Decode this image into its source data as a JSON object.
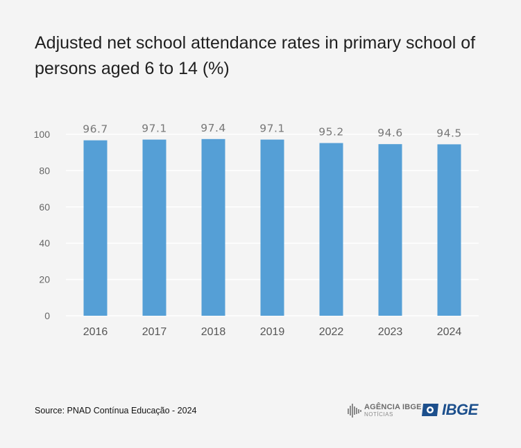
{
  "title": "Adjusted net school attendance rates in primary school of persons aged 6 to 14 (%)",
  "source": "Source: PNAD Contínua Educação - 2024",
  "logos": {
    "agencia_main": "AGÊNCIA IBGE",
    "agencia_sub": "NOTÍCIAS",
    "ibge": "IBGE"
  },
  "colors": {
    "bar": "#559fd6",
    "ibge_blue": "#1c4f8c"
  },
  "chart_data": {
    "type": "bar",
    "title": "Adjusted net school attendance rates in primary school of persons aged 6 to 14 (%)",
    "categories": [
      "2016",
      "2017",
      "2018",
      "2019",
      "2022",
      "2023",
      "2024"
    ],
    "values": [
      96.7,
      97.1,
      97.4,
      97.1,
      95.2,
      94.6,
      94.5
    ],
    "value_labels": [
      "96.7",
      "97.1",
      "97.4",
      "97.1",
      "95.2",
      "94.6",
      "94.5"
    ],
    "yticks": [
      0,
      20,
      40,
      60,
      80,
      100
    ],
    "ylim": [
      0,
      100
    ],
    "xlabel": "",
    "ylabel": "",
    "grid": true,
    "legend": "none"
  }
}
